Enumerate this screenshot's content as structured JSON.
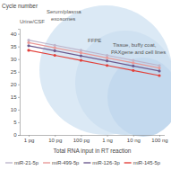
{
  "chart_data": {
    "type": "line",
    "y_label": "Cycle number",
    "x_label": "Total RNA input in RT reaction",
    "annotations": [
      "Urine/CSF",
      "Serum/plasma exosomes",
      "FFPE",
      "Tissue, buffy coat, PAXgene and cell lines"
    ],
    "categories": [
      "1 pg",
      "10 pg",
      "100 pg",
      "1 ng",
      "10 ng",
      "100 ng"
    ],
    "series": [
      {
        "name": "miR-21-5p",
        "color": "#bdb6cc",
        "marker": "circle",
        "values": [
          37.5,
          35.5,
          33.5,
          31.5,
          29.5,
          27.5
        ]
      },
      {
        "name": "miR-499-5p",
        "color": "#e99a98",
        "marker": "circle",
        "values": [
          36.5,
          34.5,
          32.5,
          30.5,
          28.5,
          26.5
        ]
      },
      {
        "name": "miR-126-3p",
        "color": "#6e5b8f",
        "marker": "circle",
        "values": [
          35.3,
          33.3,
          31.3,
          29.3,
          27.3,
          25.3
        ]
      },
      {
        "name": "miR-145-5p",
        "color": "#e2413b",
        "marker": "circle",
        "values": [
          33.5,
          31.5,
          29.5,
          27.5,
          25.5,
          23.5
        ]
      }
    ],
    "ylim": [
      0,
      42
    ],
    "yticks": [
      0,
      5,
      10,
      15,
      20,
      25,
      30,
      35,
      40
    ],
    "grid": false,
    "legend": "bottom"
  }
}
